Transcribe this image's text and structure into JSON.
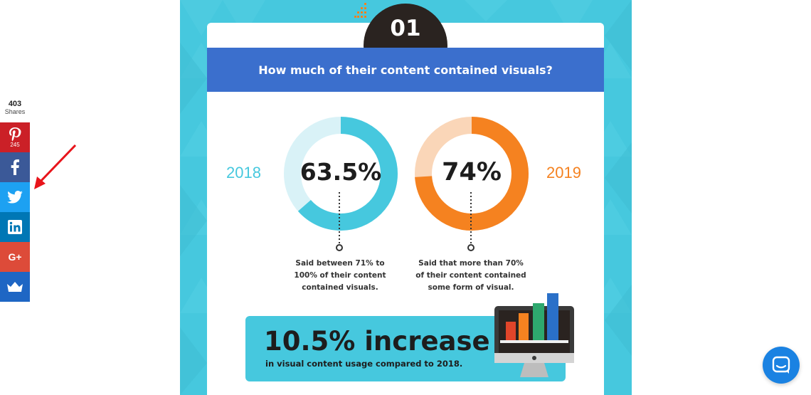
{
  "share": {
    "total_count": "403",
    "total_label": "Shares",
    "buttons": [
      {
        "network": "pinterest",
        "icon": "pinterest-icon",
        "count": "245",
        "color": "#cb2027"
      },
      {
        "network": "facebook",
        "icon": "facebook-icon",
        "color": "#3b5998"
      },
      {
        "network": "twitter",
        "icon": "twitter-bird-icon",
        "color": "#1da1f2"
      },
      {
        "network": "linkedin",
        "icon": "linkedin-icon",
        "color": "#0077b5"
      },
      {
        "network": "google-plus",
        "icon": "google-plus-icon",
        "label": "G+",
        "color": "#dd4b39"
      },
      {
        "network": "sumo",
        "icon": "crown-icon",
        "color": "#1e66c4"
      }
    ]
  },
  "annotation": {
    "icon": "red-arrow-icon",
    "color": "#e8141b"
  },
  "infographic": {
    "section_number": "01",
    "question": "How much of their content contained visuals?",
    "colors": {
      "teal": "#46c8de",
      "orange": "#f58220",
      "banner": "#3b6fcd",
      "dark": "#2a2320"
    },
    "stats": [
      {
        "year": "2018",
        "percent": "63.5%",
        "fraction": 0.635,
        "caption_lines": [
          "Said between 71% to",
          "100% of their content",
          "contained visuals."
        ]
      },
      {
        "year": "2019",
        "percent": "74%",
        "fraction": 0.74,
        "caption_lines": [
          "Said that more than 70%",
          "of their content contained",
          "some form of visual."
        ]
      }
    ],
    "increase": {
      "headline": "10.5% increase",
      "subtext": "in visual content usage compared to 2018."
    }
  },
  "chat": {
    "icon": "chat-bubble-icon"
  }
}
